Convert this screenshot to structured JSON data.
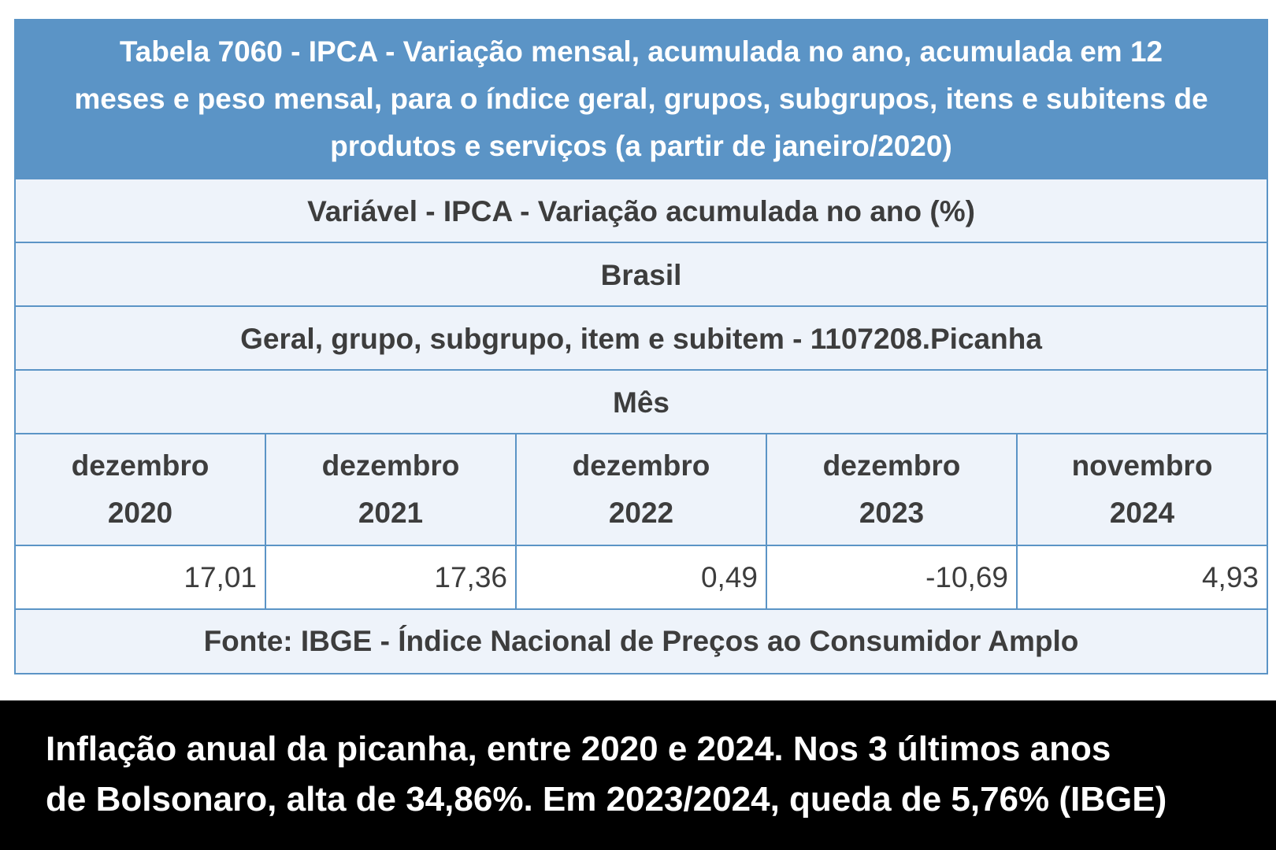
{
  "table": {
    "title_lines": [
      "Tabela 7060 - IPCA - Variação mensal, acumulada no ano, acumulada em 12",
      "meses e peso mensal, para o índice geral, grupos, subgrupos, itens e subitens de",
      "produtos e serviços (a partir de janeiro/2020)"
    ],
    "variable": "Variável - IPCA - Variação acumulada no ano  (%)",
    "region": "Brasil",
    "item": "Geral, grupo, subgrupo, item e subitem - 1107208.Picanha",
    "period_header": "Mês",
    "columns": [
      {
        "month": "dezembro",
        "year": "2020",
        "value": "17,01"
      },
      {
        "month": "dezembro",
        "year": "2021",
        "value": "17,36"
      },
      {
        "month": "dezembro",
        "year": "2022",
        "value": "0,49"
      },
      {
        "month": "dezembro",
        "year": "2023",
        "value": "-10,69"
      },
      {
        "month": "novembro",
        "year": "2024",
        "value": "4,93"
      }
    ],
    "source": "Fonte: IBGE - Índice Nacional de Preços ao Consumidor Amplo"
  },
  "caption": {
    "lines": [
      "Inflação anual da picanha, entre 2020 e 2024. Nos 3 últimos anos",
      "de Bolsonaro, alta de 34,86%. Em 2023/2024, queda de 5,76% (IBGE)"
    ]
  }
}
